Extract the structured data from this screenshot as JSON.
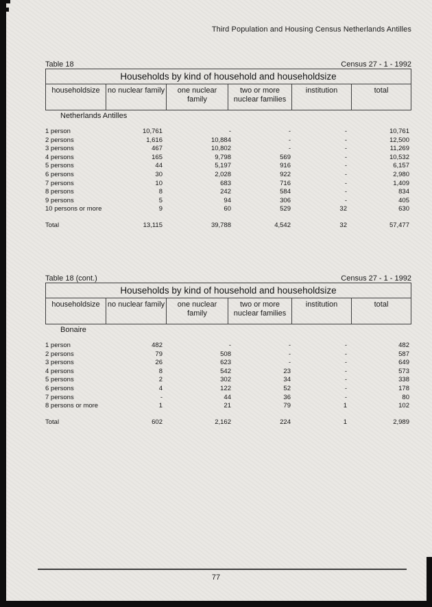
{
  "colors": {
    "paper": "#e9e7e3",
    "ink": "#1a1a1a",
    "border": "#3c3c3c",
    "artifact": "#0e0e0e"
  },
  "page": {
    "header": "Third Population and Housing Census Netherlands Antilles",
    "page_number": "77"
  },
  "tables": [
    {
      "label": "Table 18",
      "census": "Census 27 - 1 - 1992",
      "title": "Households by kind of household and householdsize",
      "columns": [
        "householdsize",
        "no nuclear family",
        "one nuclear family",
        "two or more nuclear families",
        "institution",
        "total"
      ],
      "section": "Netherlands Antilles",
      "rows": [
        [
          "1 person",
          "10,761",
          "-",
          "-",
          "-",
          "10,761"
        ],
        [
          "2 persons",
          "1,616",
          "10,884",
          "-",
          "-",
          "12,500"
        ],
        [
          "3 persons",
          "467",
          "10,802",
          "-",
          "-",
          "11,269"
        ],
        [
          "4 persons",
          "165",
          "9,798",
          "569",
          "-",
          "10,532"
        ],
        [
          "5 persons",
          "44",
          "5,197",
          "916",
          "-",
          "6,157"
        ],
        [
          "6 persons",
          "30",
          "2,028",
          "922",
          "-",
          "2,980"
        ],
        [
          "7 persons",
          "10",
          "683",
          "716",
          "-",
          "1,409"
        ],
        [
          "8 persons",
          "8",
          "242",
          "584",
          "-",
          "834"
        ],
        [
          "9 persons",
          "5",
          "94",
          "306",
          "-",
          "405"
        ],
        [
          "10 persons or more",
          "9",
          "60",
          "529",
          "32",
          "630"
        ]
      ],
      "total": [
        "Total",
        "13,115",
        "39,788",
        "4,542",
        "32",
        "57,477"
      ]
    },
    {
      "label": "Table 18 (cont.)",
      "census": "Census 27 - 1 - 1992",
      "title": "Households by kind of household and householdsize",
      "columns": [
        "householdsize",
        "no nuclear family",
        "one nuclear family",
        "two or more nuclear families",
        "institution",
        "total"
      ],
      "section": "Bonaire",
      "rows": [
        [
          "1 person",
          "482",
          "-",
          "-",
          "-",
          "482"
        ],
        [
          "2 persons",
          "79",
          "508",
          "-",
          "-",
          "587"
        ],
        [
          "3 persons",
          "26",
          "623",
          "-",
          "-",
          "649"
        ],
        [
          "4 persons",
          "8",
          "542",
          "23",
          "-",
          "573"
        ],
        [
          "5 persons",
          "2",
          "302",
          "34",
          "-",
          "338"
        ],
        [
          "6 persons",
          "4",
          "122",
          "52",
          "-",
          "178"
        ],
        [
          "7 persons",
          "-",
          "44",
          "36",
          "-",
          "80"
        ],
        [
          "8 persons or more",
          "1",
          "21",
          "79",
          "1",
          "102"
        ]
      ],
      "total": [
        "Total",
        "602",
        "2,162",
        "224",
        "1",
        "2,989"
      ]
    }
  ]
}
